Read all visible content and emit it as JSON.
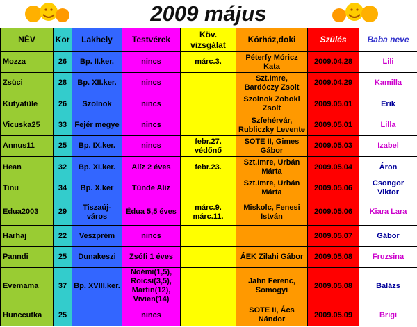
{
  "title": "2009 május",
  "headers": {
    "name": "NÉV",
    "kor": "Kor",
    "lakhely": "Lakhely",
    "testverek": "Testvérek",
    "kovetkezo": "Köv. vizsgálat",
    "korhaz": "Kórház,doki",
    "szules": "Szülés",
    "baba": "Baba neve"
  },
  "colors": {
    "name": "#99cc33",
    "kor": "#33cccc",
    "lakhely": "#3366ff",
    "testverek": "#ff00ff",
    "kovetkezo": "#ffff00",
    "korhaz": "#ff9900",
    "szules": "#ff0000",
    "baba": "#ffffff"
  },
  "rows": [
    {
      "name": "Mozza",
      "kor": "26",
      "lakhely": "Bp. II.ker.",
      "testverek": "nincs",
      "kovetkezo": "márc.3.",
      "korhaz": "Péterfy Móricz Kata",
      "szules": "2009.04.28",
      "baba": "Lili",
      "baba_color": "#cc00cc"
    },
    {
      "name": "Zsüci",
      "kor": "28",
      "lakhely": "Bp. XII.ker.",
      "testverek": "nincs",
      "kovetkezo": "",
      "korhaz": "Szt.Imre, Bardóczy Zsolt",
      "szules": "2009.04.29",
      "baba": "Kamilla",
      "baba_color": "#cc00cc"
    },
    {
      "name": "Kutyafüle",
      "kor": "26",
      "lakhely": "Szolnok",
      "testverek": "nincs",
      "kovetkezo": "",
      "korhaz": "Szolnok Zoboki Zsolt",
      "szules": "2009.05.01",
      "baba": "Erik",
      "baba_color": "#000099"
    },
    {
      "name": "Vicuska25",
      "kor": "33",
      "lakhely": "Fejér megye",
      "testverek": "nincs",
      "kovetkezo": "",
      "korhaz": "Szfehérvár, Rubliczky Levente",
      "szules": "2009.05.01",
      "baba": "Lilla",
      "baba_color": "#cc00cc"
    },
    {
      "name": "Annus11",
      "kor": "25",
      "lakhely": "Bp. IX.ker.",
      "testverek": "nincs",
      "kovetkezo": "febr.27. védőnő",
      "korhaz": "SOTE II, Gimes Gábor",
      "szules": "2009.05.03",
      "baba": "Izabel",
      "baba_color": "#cc00cc"
    },
    {
      "name": "Hean",
      "kor": "32",
      "lakhely": "Bp. XI.ker.",
      "testverek": "Alíz 2 éves",
      "kovetkezo": "febr.23.",
      "korhaz": "Szt.Imre, Urbán Márta",
      "szules": "2009.05.04",
      "baba": "Áron",
      "baba_color": "#000099"
    },
    {
      "name": "Tinu",
      "kor": "34",
      "lakhely": "Bp. X.ker",
      "testverek": "Tünde Alíz",
      "kovetkezo": "",
      "korhaz": "Szt.Imre, Urbán Márta",
      "szules": "2009.05.06",
      "baba": "Csongor Viktor",
      "baba_color": "#000099"
    },
    {
      "name": "Edua2003",
      "kor": "29",
      "lakhely": "Tiszaúj-város",
      "testverek": "Édua 5,5 éves",
      "kovetkezo": "márc.9. márc.11.",
      "korhaz": "Miskolc, Fenesi István",
      "szules": "2009.05.06",
      "baba": "Kiara Lara",
      "baba_color": "#cc00cc"
    },
    {
      "name": "Harhaj",
      "kor": "22",
      "lakhely": "Veszprém",
      "testverek": "nincs",
      "kovetkezo": "",
      "korhaz": "",
      "szules": "2009.05.07",
      "baba": "Gábor",
      "baba_color": "#000099"
    },
    {
      "name": "Panndi",
      "kor": "25",
      "lakhely": "Dunakeszi",
      "testverek": "Zsófi 1 éves",
      "kovetkezo": "",
      "korhaz": "ÁEK Zilahi Gábor",
      "szules": "2009.05.08",
      "baba": "Fruzsina",
      "baba_color": "#cc00cc"
    },
    {
      "name": "Evemama",
      "kor": "37",
      "lakhely": "Bp. XVIII.ker.",
      "testverek": "Noémi(1,5), Roicsi(3,5), Martin(12), Vivien(14)",
      "kovetkezo": "",
      "korhaz": "Jahn Ferenc, Somogyi",
      "szules": "2009.05.08",
      "baba": "Balázs",
      "baba_color": "#000099"
    },
    {
      "name": "Hunccutka",
      "kor": "25",
      "lakhely": "",
      "testverek": "nincs",
      "kovetkezo": "",
      "korhaz": "SOTE II, Ács Nándor",
      "szules": "2009.05.09",
      "baba": "Brigi",
      "baba_color": "#cc00cc"
    }
  ]
}
